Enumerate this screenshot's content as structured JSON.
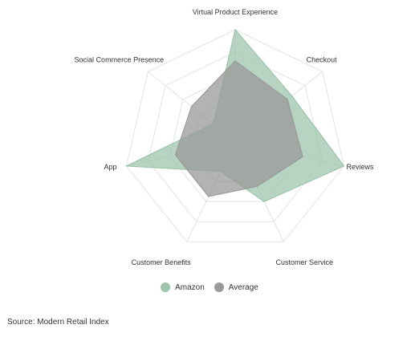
{
  "chart_data": {
    "type": "radar",
    "title": "",
    "axes": [
      "Virtual Product Experience",
      "Checkout",
      "Reviews",
      "Customer Service",
      "Customer Benefits",
      "App",
      "Social Commerce Presence"
    ],
    "range": [
      0,
      100
    ],
    "grid": true,
    "grid_levels": 5,
    "series": [
      {
        "name": "Amazon",
        "color": "#9dc5ac",
        "values": [
          100,
          65,
          100,
          60,
          30,
          100,
          25
        ]
      },
      {
        "name": "Average",
        "color": "#9a9a9a",
        "values": [
          72,
          60,
          62,
          45,
          55,
          55,
          50
        ]
      }
    ],
    "legend_position": "bottom"
  },
  "source": "Source: Modern Retail Index"
}
